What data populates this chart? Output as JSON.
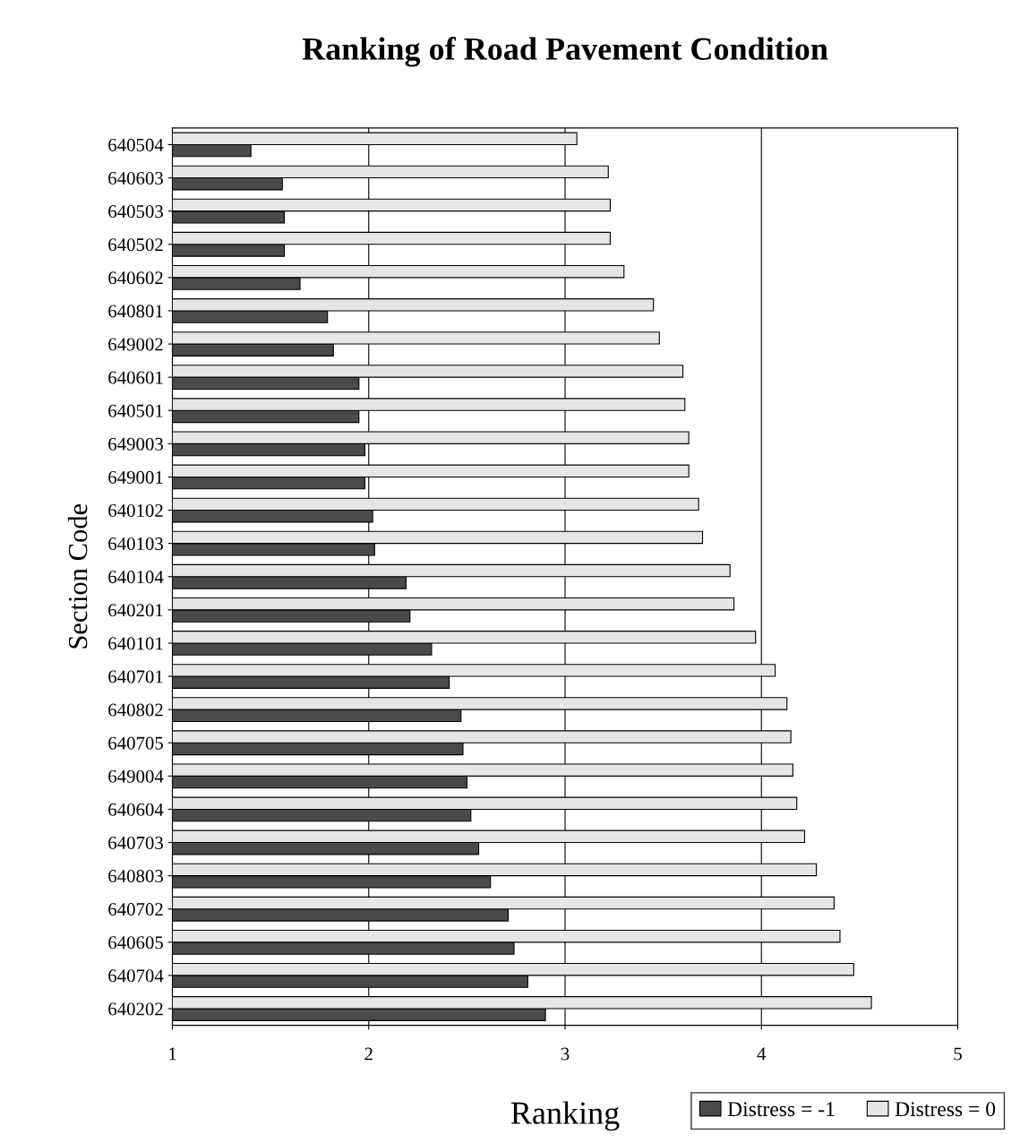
{
  "chart_data": {
    "type": "bar",
    "orientation": "horizontal",
    "title": "Ranking of Road Pavement Condition",
    "xlabel": "Ranking",
    "ylabel": "Section Code",
    "categories": [
      "640504",
      "640603",
      "640503",
      "640502",
      "640602",
      "640801",
      "649002",
      "640601",
      "640501",
      "649003",
      "649001",
      "640102",
      "640103",
      "640104",
      "640201",
      "640101",
      "640701",
      "640802",
      "640705",
      "649004",
      "640604",
      "640703",
      "640803",
      "640702",
      "640605",
      "640704",
      "640202"
    ],
    "series": [
      {
        "name": "Distress = -1",
        "color": "#4a4a4a",
        "values": [
          1.4,
          1.56,
          1.57,
          1.57,
          1.65,
          1.79,
          1.82,
          1.95,
          1.95,
          1.98,
          1.98,
          2.02,
          2.03,
          2.19,
          2.21,
          2.32,
          2.41,
          2.47,
          2.48,
          2.5,
          2.52,
          2.56,
          2.62,
          2.71,
          2.74,
          2.81,
          2.9
        ]
      },
      {
        "name": "Distress = 0",
        "color": "#e6e6e6",
        "values": [
          3.06,
          3.22,
          3.23,
          3.23,
          3.3,
          3.45,
          3.48,
          3.6,
          3.61,
          3.63,
          3.63,
          3.68,
          3.7,
          3.84,
          3.86,
          3.97,
          4.07,
          4.13,
          4.15,
          4.16,
          4.18,
          4.22,
          4.28,
          4.37,
          4.4,
          4.47,
          4.56
        ]
      }
    ],
    "xlim": [
      1,
      5
    ],
    "xticks": [
      1,
      2,
      3,
      4,
      5
    ],
    "grid": "x",
    "legend": "bottom right"
  }
}
